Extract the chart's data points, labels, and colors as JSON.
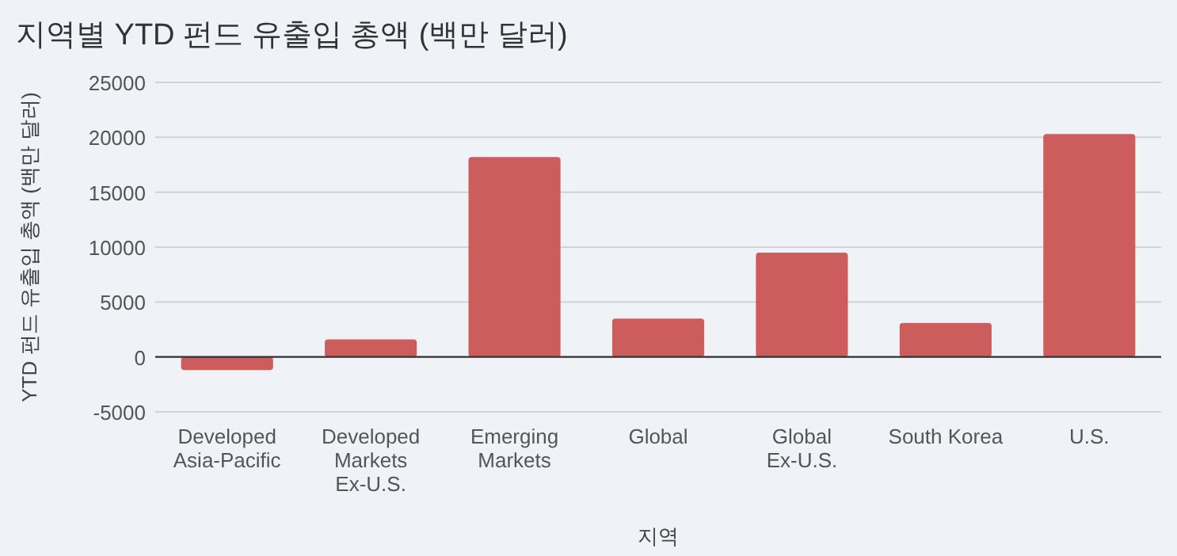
{
  "chart_data": {
    "type": "bar",
    "title": "지역별 YTD 펀드 유출입 총액 (백만 달러)",
    "xlabel": "지역",
    "ylabel": "YTD 펀드 유출입 총액 (백만 달러)",
    "categories": [
      "Developed Asia-Pacific",
      "Developed Markets Ex-U.S.",
      "Emerging Markets",
      "Global",
      "Global Ex-U.S.",
      "South Korea",
      "U.S."
    ],
    "values": [
      -1200,
      1600,
      18200,
      3500,
      9500,
      3100,
      20300
    ],
    "color": "#cd5c5c",
    "ylim": [
      -5000,
      25000
    ],
    "yticks": [
      -5000,
      0,
      5000,
      10000,
      15000,
      20000,
      25000
    ],
    "grid": "y"
  }
}
